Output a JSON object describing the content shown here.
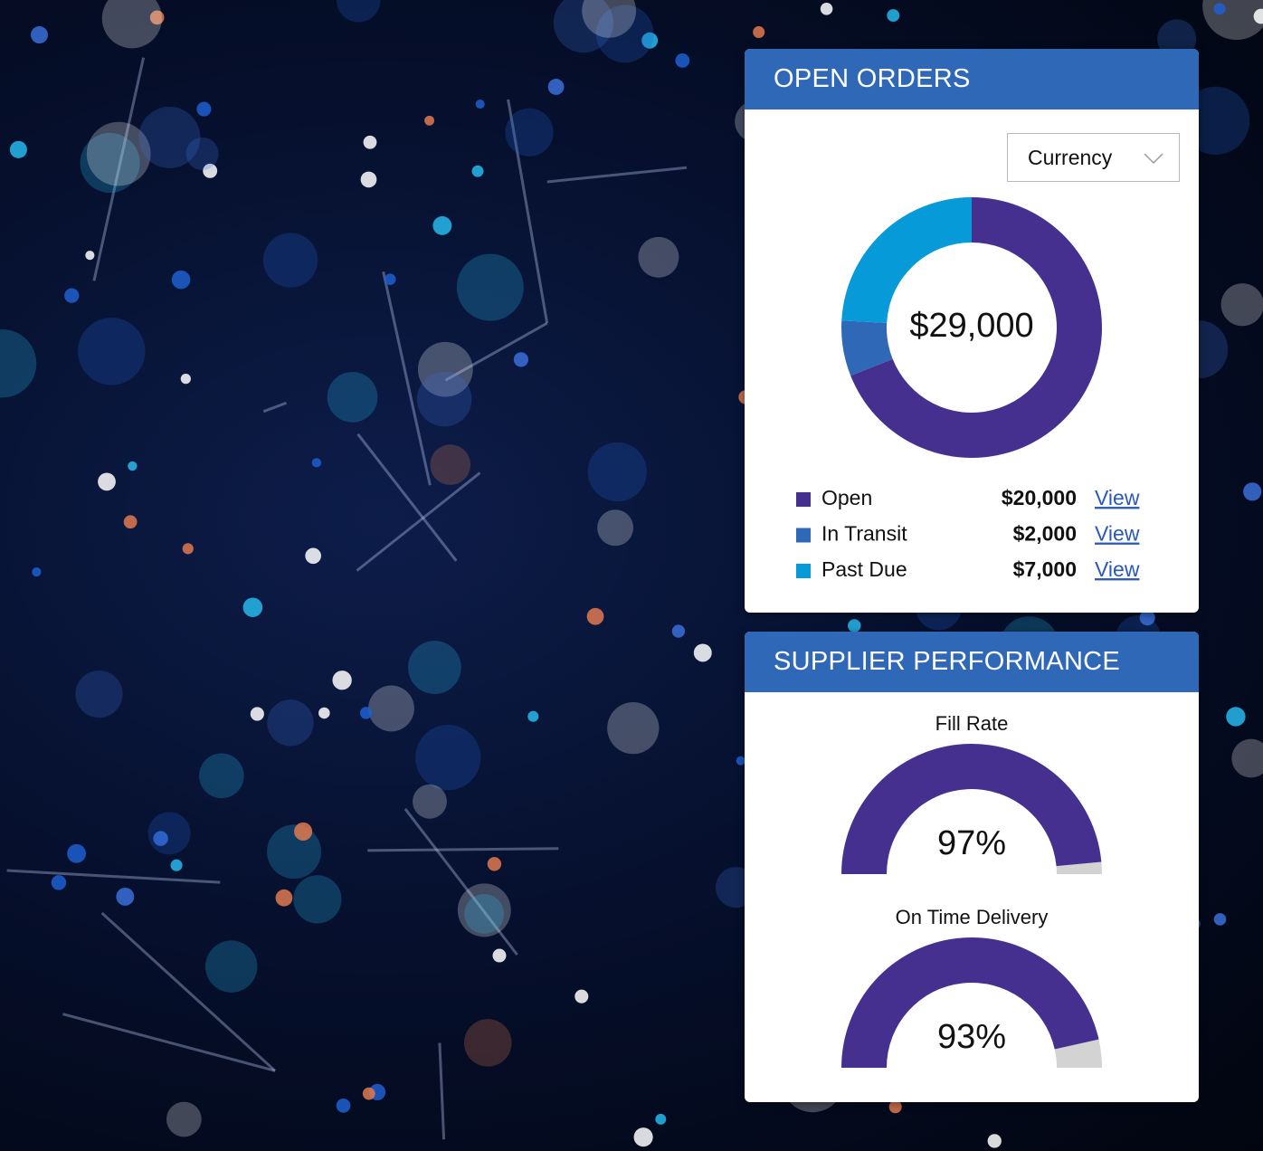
{
  "panels": [
    {
      "title": "OPEN ORDERS",
      "dropdown": "Currency"
    },
    {
      "title": "SUPPLIER PERFORMANCE"
    }
  ],
  "chart_data": [
    {
      "type": "donut",
      "total": 29000,
      "total_label": "$29,000",
      "categories": [
        "Open",
        "In Transit",
        "Past Due"
      ],
      "values": [
        20000,
        2000,
        7000
      ],
      "value_labels": [
        "$20,000",
        "$2,000",
        "$7,000"
      ],
      "colors": [
        "#46308f",
        "#2f68b6",
        "#079ad9"
      ],
      "link_label": "View"
    },
    {
      "type": "gauge",
      "title": "Fill Rate",
      "value": 97,
      "value_label": "97%",
      "ylim": [
        0,
        100
      ],
      "color": "#46308f",
      "track_color": "#d3d3d3"
    },
    {
      "type": "gauge",
      "title": "On Time Delivery",
      "value": 93,
      "value_label": "93%",
      "ylim": [
        0,
        100
      ],
      "color": "#46308f",
      "track_color": "#d3d3d3"
    }
  ]
}
